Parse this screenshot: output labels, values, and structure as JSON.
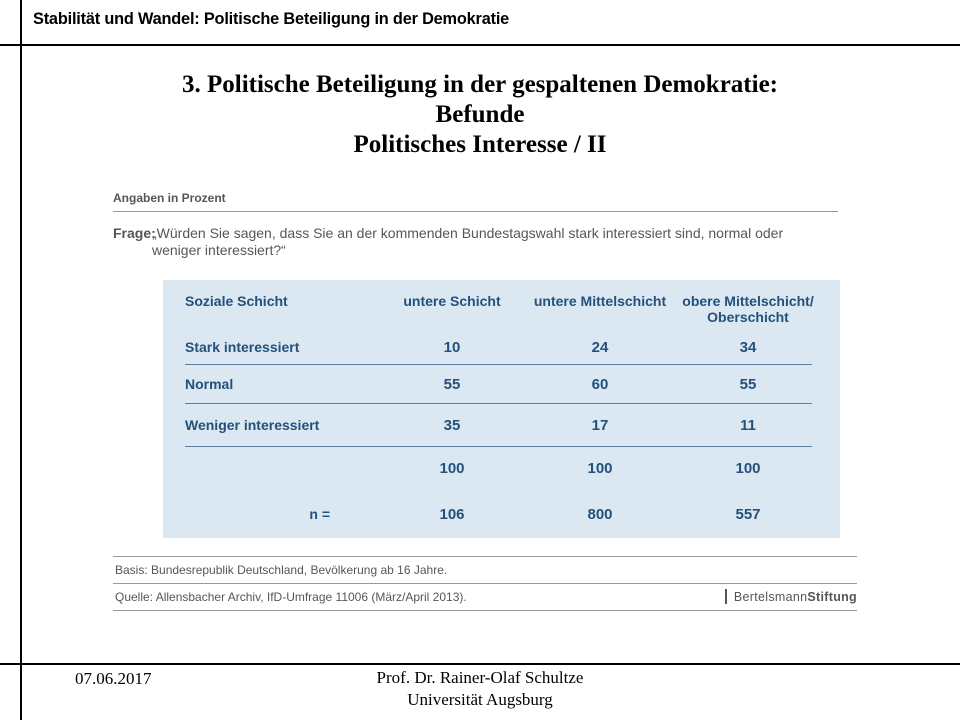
{
  "slide": {
    "header": "Stabilität und Wandel: Politische Beteiligung in der Demokratie",
    "title_line1": "3. Politische Beteiligung in der gespaltenen Demokratie:",
    "title_line2": "Befunde",
    "title_line3": "Politisches Interesse / II",
    "footer": {
      "date": "07.06.2017",
      "author": "Prof. Dr. Rainer-Olaf  Schultze",
      "institution": "Universität  Augsburg"
    }
  },
  "figure": {
    "unit_note": "Angaben in Prozent",
    "question_label": "Frage:",
    "question_text": "„Würden Sie sagen, dass Sie an der kommenden Bundestagswahl stark interessiert sind, normal oder weniger interessiert?“",
    "basis": "Basis: Bundesrepublik Deutschland, Bevölkerung ab 16 Jahre.",
    "source": "Quelle: Allensbacher Archiv, IfD-Umfrage 11006 (März/April 2013).",
    "logo": {
      "part1": "Bertelsmann",
      "part2": "Stiftung"
    }
  },
  "chart_data": {
    "type": "table",
    "title": "",
    "unit": "Prozent",
    "header": {
      "col0": "Soziale Schicht",
      "col1": "untere Schicht",
      "col2": "untere Mittelschicht",
      "col3_line1": "obere Mittelschicht/",
      "col3_line2": "Oberschicht"
    },
    "categories": [
      "untere Schicht",
      "untere Mittelschicht",
      "obere Mittelschicht/Oberschicht"
    ],
    "rows": [
      {
        "label": "Stark interessiert",
        "values": [
          10,
          24,
          34
        ]
      },
      {
        "label": "Normal",
        "values": [
          55,
          60,
          55
        ]
      },
      {
        "label": "Weniger interessiert",
        "values": [
          35,
          17,
          11
        ]
      }
    ],
    "totals": {
      "values": [
        100,
        100,
        100
      ]
    },
    "sample": {
      "label": "n =",
      "values": [
        106,
        800,
        557
      ]
    }
  },
  "colors": {
    "table_background": "#dbe8f2",
    "table_text": "#24507c",
    "table_rule": "#5d7da3",
    "figure_gray_text": "#55565a",
    "figure_gray_rule": "#96989b"
  }
}
